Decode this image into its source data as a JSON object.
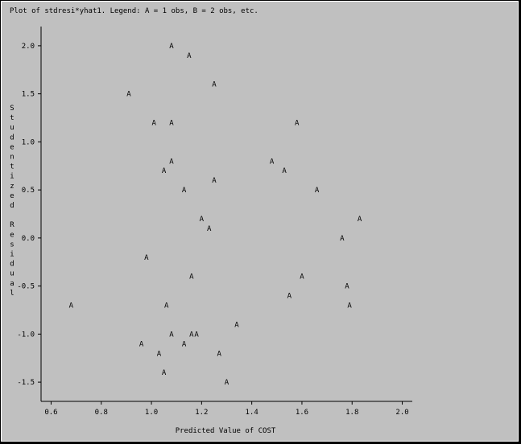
{
  "chart_data": {
    "type": "scatter",
    "title": "Plot of stdresi*yhat1.  Legend: A = 1 obs, B = 2 obs, etc.",
    "xlabel": "Predicted Value of COST",
    "ylabel": "Studentized Residual",
    "x_ticks": [
      "0.6",
      "0.8",
      "1.0",
      "1.2",
      "1.4",
      "1.6",
      "1.8",
      "2.0"
    ],
    "y_ticks": [
      "2.0",
      "1.5",
      "1.0",
      "0.5",
      "0.0",
      "-0.5",
      "-1.0",
      "-1.5"
    ],
    "xlim": [
      0.56,
      2.04
    ],
    "ylim": [
      -1.7,
      2.2
    ],
    "symbol": "A",
    "points": [
      {
        "x": 1.08,
        "y": 2.0
      },
      {
        "x": 1.15,
        "y": 1.9
      },
      {
        "x": 1.25,
        "y": 1.6
      },
      {
        "x": 0.91,
        "y": 1.5
      },
      {
        "x": 1.01,
        "y": 1.2
      },
      {
        "x": 1.08,
        "y": 1.2
      },
      {
        "x": 1.58,
        "y": 1.2
      },
      {
        "x": 1.08,
        "y": 0.8
      },
      {
        "x": 1.48,
        "y": 0.8
      },
      {
        "x": 1.05,
        "y": 0.7
      },
      {
        "x": 1.53,
        "y": 0.7
      },
      {
        "x": 1.25,
        "y": 0.6
      },
      {
        "x": 1.13,
        "y": 0.5
      },
      {
        "x": 1.66,
        "y": 0.5
      },
      {
        "x": 1.2,
        "y": 0.2
      },
      {
        "x": 1.83,
        "y": 0.2
      },
      {
        "x": 1.23,
        "y": 0.1
      },
      {
        "x": 1.76,
        "y": 0.0
      },
      {
        "x": 0.98,
        "y": -0.2
      },
      {
        "x": 1.16,
        "y": -0.4
      },
      {
        "x": 1.6,
        "y": -0.4
      },
      {
        "x": 1.78,
        "y": -0.5
      },
      {
        "x": 1.55,
        "y": -0.6
      },
      {
        "x": 0.68,
        "y": -0.7
      },
      {
        "x": 1.06,
        "y": -0.7
      },
      {
        "x": 1.79,
        "y": -0.7
      },
      {
        "x": 1.34,
        "y": -0.9
      },
      {
        "x": 1.08,
        "y": -1.0
      },
      {
        "x": 1.16,
        "y": -1.0
      },
      {
        "x": 1.18,
        "y": -1.0
      },
      {
        "x": 0.96,
        "y": -1.1
      },
      {
        "x": 1.13,
        "y": -1.1
      },
      {
        "x": 1.03,
        "y": -1.2
      },
      {
        "x": 1.27,
        "y": -1.2
      },
      {
        "x": 1.05,
        "y": -1.4
      },
      {
        "x": 1.3,
        "y": -1.5
      }
    ]
  }
}
